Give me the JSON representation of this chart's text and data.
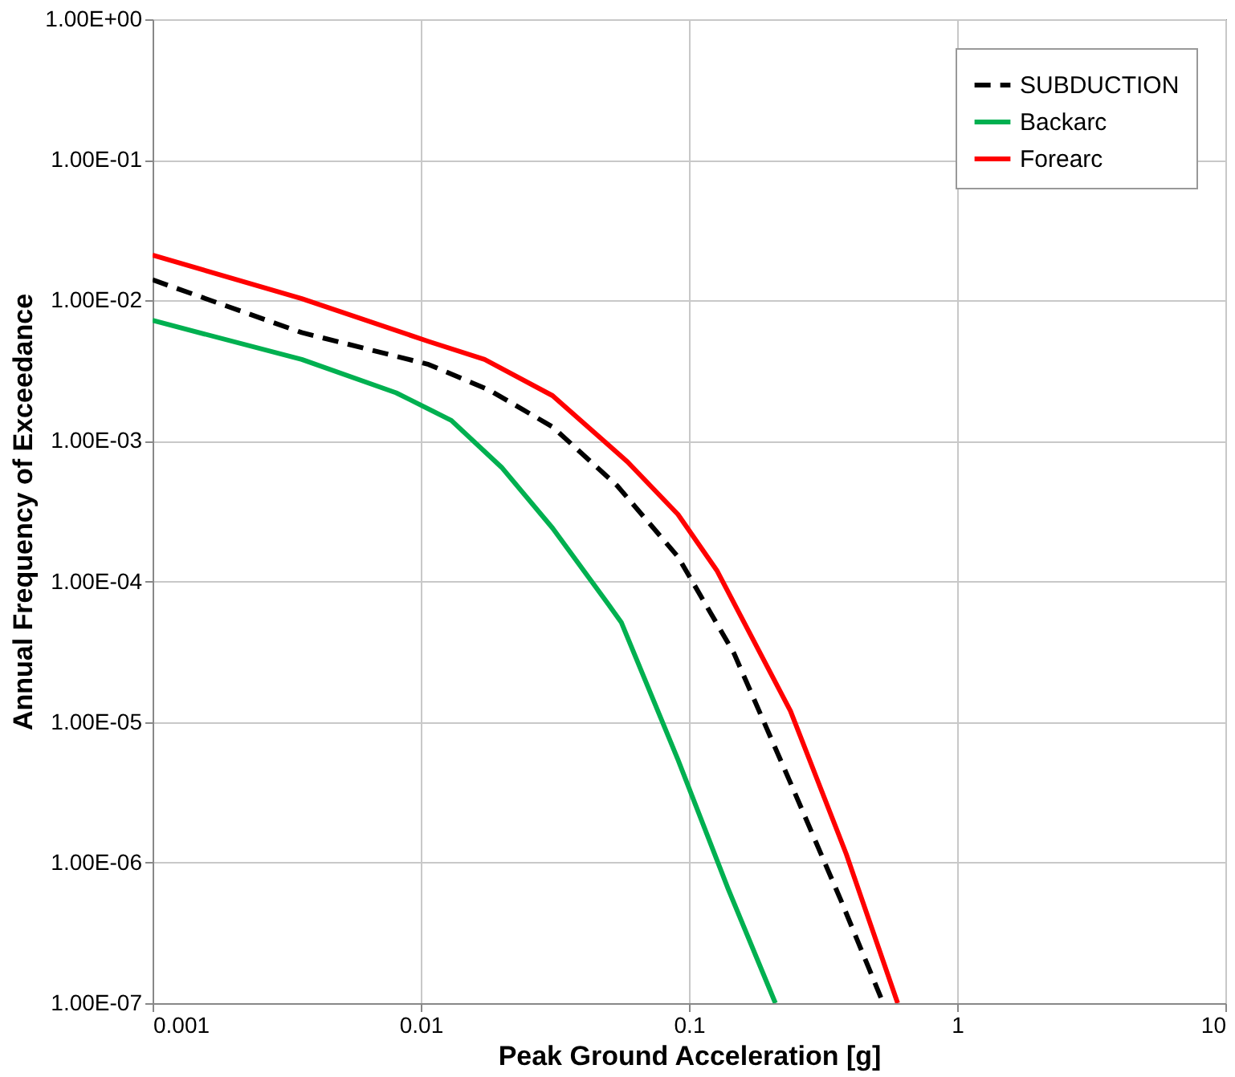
{
  "chart_data": {
    "type": "line",
    "xlabel": "Peak Ground Acceleration [g]",
    "ylabel": "Annual Frequency of Exceedance",
    "log": "xy",
    "grid": true,
    "legend": "top right",
    "xlim": [
      0.001,
      10
    ],
    "xticks": [
      0.001,
      0.01,
      0.1,
      1,
      10
    ],
    "ylim": [
      1e-07,
      1
    ],
    "yticks": [
      {
        "value": 1,
        "label": "1.00E+00"
      },
      {
        "value": 0.1,
        "label": "1.00E-01"
      },
      {
        "value": 0.01,
        "label": "1.00E-02"
      },
      {
        "value": 0.001,
        "label": "1.00E-03"
      },
      {
        "value": 0.0001,
        "label": "1.00E-04"
      },
      {
        "value": 1e-05,
        "label": "1.00E-05"
      },
      {
        "value": 1e-06,
        "label": "1.00E-06"
      },
      {
        "value": 1e-07,
        "label": "1.00E-07"
      }
    ],
    "series": [
      {
        "name": "SUBDUCTION",
        "color": "#000000",
        "line_style": "dashed",
        "x": [
          0.001,
          0.0036,
          0.0107,
          0.018,
          0.031,
          0.054,
          0.091,
          0.147,
          0.239,
          0.37,
          0.53
        ],
        "values": [
          0.014,
          0.0059,
          0.0035,
          0.0023,
          0.00126,
          0.00048,
          0.00015,
          3.1e-05,
          3.7e-06,
          5.3e-07,
          1e-07
        ]
      },
      {
        "name": "Backarc",
        "color": "#00b050",
        "line_style": "solid",
        "x": [
          0.001,
          0.0036,
          0.0081,
          0.013,
          0.02,
          0.031,
          0.05,
          0.056,
          0.091,
          0.14,
          0.21
        ],
        "values": [
          0.0072,
          0.0038,
          0.0022,
          0.0014,
          0.00065,
          0.00024,
          6.9e-05,
          5.1e-05,
          5.4e-06,
          6.5e-07,
          1e-07
        ]
      },
      {
        "name": "Forearc",
        "color": "#ff0000",
        "line_style": "solid",
        "x": [
          0.001,
          0.0036,
          0.0107,
          0.0173,
          0.031,
          0.059,
          0.091,
          0.127,
          0.239,
          0.386,
          0.6
        ],
        "values": [
          0.021,
          0.0103,
          0.0051,
          0.0038,
          0.0021,
          0.00071,
          0.0003,
          0.00012,
          1.2e-05,
          1.15e-06,
          1e-07
        ]
      }
    ]
  }
}
